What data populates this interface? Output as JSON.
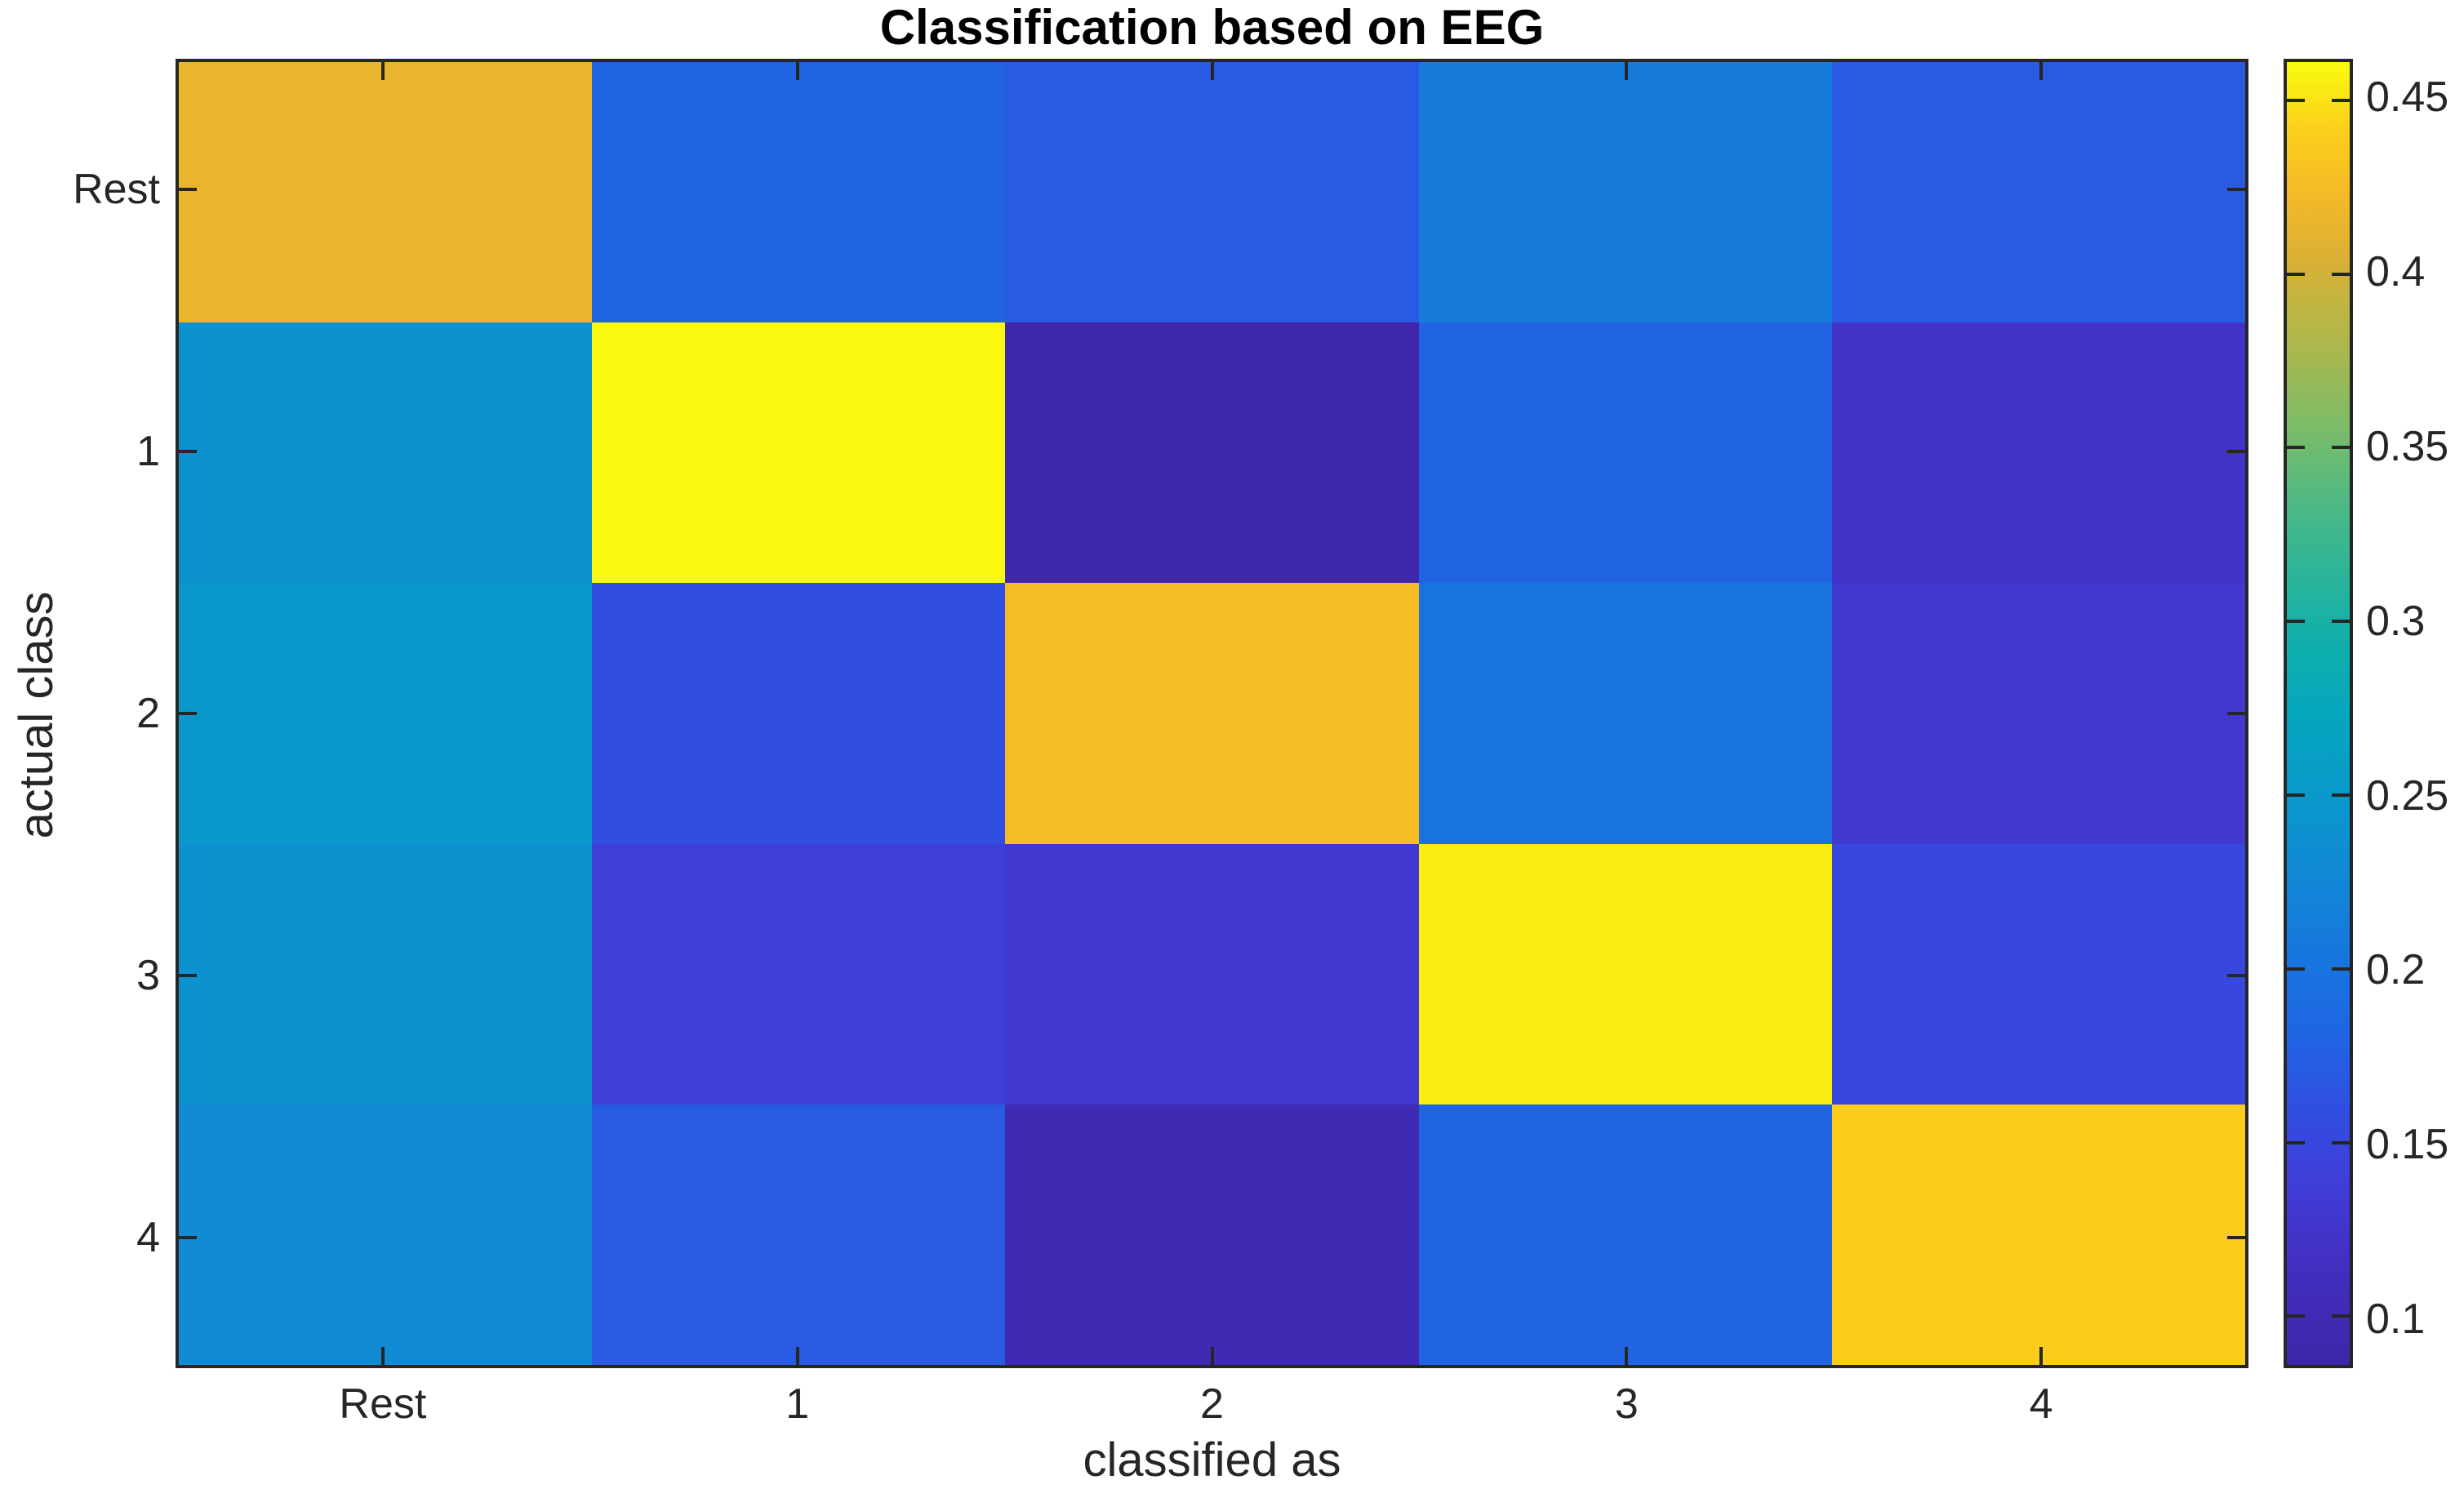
{
  "title": "Classification based on EEG",
  "chart_data": {
    "type": "heatmap",
    "title": "Classification based on EEG",
    "xlabel": "classified as",
    "ylabel": "actual class",
    "x_tick_labels": [
      "Rest",
      "1",
      "2",
      "3",
      "4"
    ],
    "y_tick_labels": [
      "Rest",
      "1",
      "2",
      "3",
      "4"
    ],
    "rows_meaning": "actual class (top to bottom)",
    "cols_meaning": "classified as (left to right)",
    "values": [
      [
        0.415,
        0.18,
        0.17,
        0.21,
        0.17
      ],
      [
        0.24,
        0.46,
        0.09,
        0.18,
        0.12
      ],
      [
        0.25,
        0.16,
        0.425,
        0.2,
        0.13
      ],
      [
        0.24,
        0.14,
        0.13,
        0.455,
        0.15
      ],
      [
        0.23,
        0.17,
        0.1,
        0.18,
        0.44
      ]
    ],
    "colormap": "parula",
    "colorbar": {
      "vmin": 0.086,
      "vmax": 0.461,
      "ticks": [
        0.1,
        0.15,
        0.2,
        0.25,
        0.3,
        0.35,
        0.4,
        0.45
      ],
      "tick_labels": [
        "0.1",
        "0.15",
        "0.2",
        "0.25",
        "0.3",
        "0.35",
        "0.4",
        "0.45"
      ],
      "position": "right"
    },
    "grid": false,
    "legend": false
  },
  "colors": {
    "background": "#ffffff",
    "axis": "#262626",
    "title_text": "#000000",
    "tick_text": "#262626",
    "parula_min": "#3e26a8",
    "parula_max": "#f9fb0e"
  }
}
